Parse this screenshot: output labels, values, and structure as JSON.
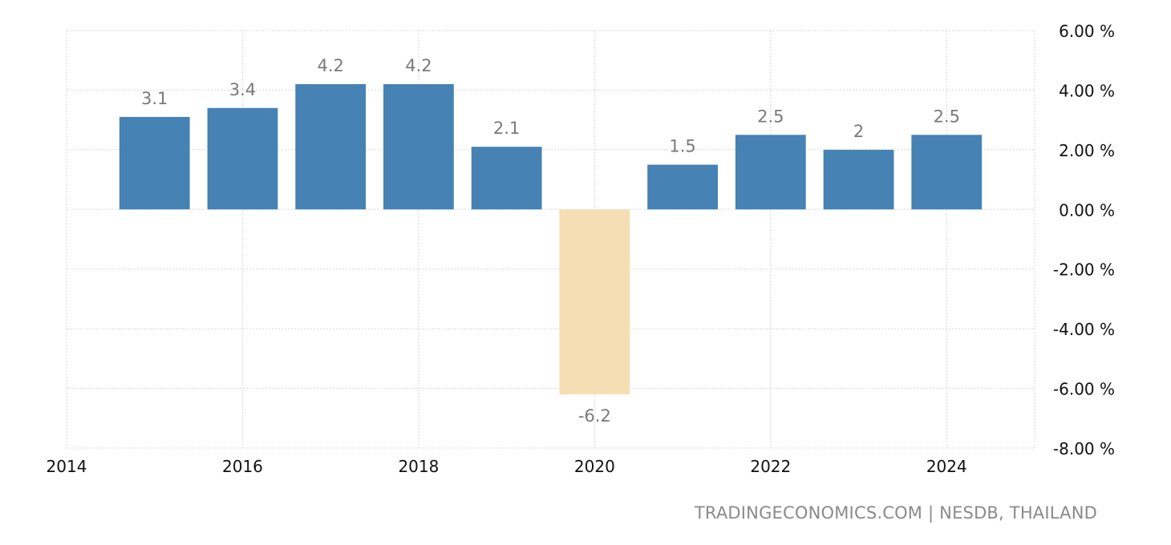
{
  "chart_data": {
    "type": "bar",
    "title": "",
    "xlabel": "",
    "ylabel": "",
    "categories": [
      "2015",
      "2016",
      "2017",
      "2018",
      "2019",
      "2020",
      "2021",
      "2022",
      "2023",
      "2024"
    ],
    "values": [
      3.1,
      3.4,
      4.2,
      4.2,
      2.1,
      -6.2,
      1.5,
      2.5,
      2,
      2.5
    ],
    "value_labels": [
      "3.1",
      "3.4",
      "4.2",
      "4.2",
      "2.1",
      "-6.2",
      "1.5",
      "2.5",
      "2",
      "2.5"
    ],
    "ylim": [
      -8,
      6
    ],
    "xlim": [
      2014,
      2025
    ],
    "y_ticks": [
      {
        "value": 6,
        "label": "6.00 %"
      },
      {
        "value": 4,
        "label": "4.00 %"
      },
      {
        "value": 2,
        "label": "2.00 %"
      },
      {
        "value": 0,
        "label": "0.00 %"
      },
      {
        "value": -2,
        "label": "-2.00 %"
      },
      {
        "value": -4,
        "label": "-4.00 %"
      },
      {
        "value": -6,
        "label": "-6.00 %"
      },
      {
        "value": -8,
        "label": "-8.00 %"
      }
    ],
    "x_ticks": [
      {
        "value": 2014,
        "label": "2014"
      },
      {
        "value": 2016,
        "label": "2016"
      },
      {
        "value": 2018,
        "label": "2018"
      },
      {
        "value": 2020,
        "label": "2020"
      },
      {
        "value": 2022,
        "label": "2022"
      },
      {
        "value": 2024,
        "label": "2024"
      }
    ],
    "grid": true,
    "colors": {
      "positive": "#4682b4",
      "negative": "#f5deb3",
      "label": "#7a7a7a",
      "grid": "#d8d8d8",
      "axis_text": "#111111"
    }
  },
  "source": "TRADINGECONOMICS.COM | NESDB, THAILAND"
}
